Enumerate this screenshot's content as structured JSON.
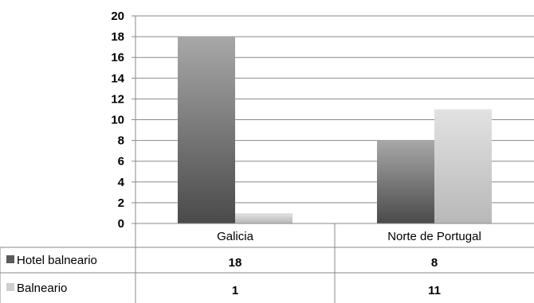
{
  "chart_data": {
    "type": "bar",
    "categories": [
      "Galicia",
      "Norte de Portugal"
    ],
    "series": [
      {
        "name": "Hotel balneario",
        "values": [
          18,
          8
        ],
        "color": "#5a5a5a"
      },
      {
        "name": "Balneario",
        "values": [
          1,
          11
        ],
        "color": "#cfcfcf"
      }
    ],
    "ylim": [
      0,
      20
    ],
    "yticks": [
      0,
      2,
      4,
      6,
      8,
      10,
      12,
      14,
      16,
      18,
      20
    ],
    "grid": true,
    "legend": "data-table"
  }
}
